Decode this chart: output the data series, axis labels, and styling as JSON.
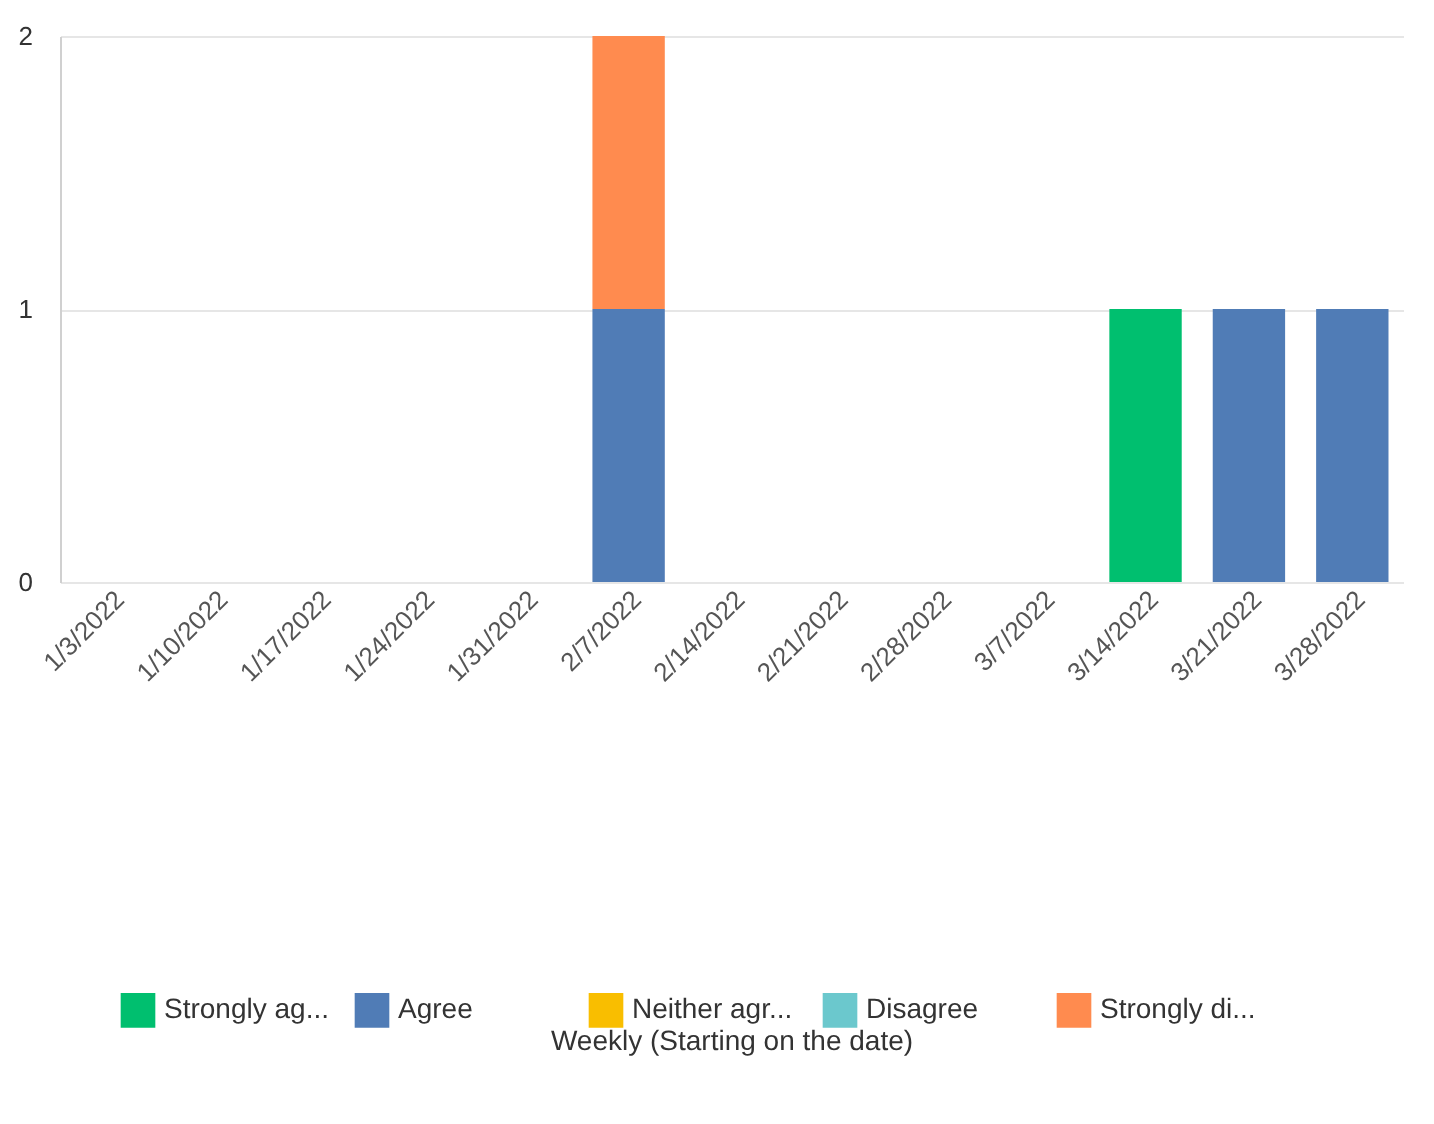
{
  "chart_data": {
    "type": "bar",
    "annotations": [
      "Weekly (Starting on the date)"
    ],
    "categories": [
      "1/3/2022",
      "1/10/2022",
      "1/17/2022",
      "1/24/2022",
      "1/31/2022",
      "2/7/2022",
      "2/14/2022",
      "2/21/2022",
      "2/28/2022",
      "3/7/2022",
      "3/14/2022",
      "3/21/2022",
      "3/28/2022"
    ],
    "series": [
      {
        "name": "Strongly ag...",
        "color": "#00bf6f",
        "values": [
          0,
          0,
          0,
          0,
          0,
          0,
          0,
          0,
          0,
          0,
          1,
          0,
          0
        ]
      },
      {
        "name": "Agree",
        "color": "#507cb6",
        "values": [
          0,
          0,
          0,
          0,
          0,
          1,
          0,
          0,
          0,
          0,
          0,
          1,
          1
        ]
      },
      {
        "name": "Neither agr...",
        "color": "#f9be00",
        "values": [
          0,
          0,
          0,
          0,
          0,
          0,
          0,
          0,
          0,
          0,
          0,
          0,
          0
        ]
      },
      {
        "name": "Disagree",
        "color": "#6bc8cd",
        "values": [
          0,
          0,
          0,
          0,
          0,
          0,
          0,
          0,
          0,
          0,
          0,
          0,
          0
        ]
      },
      {
        "name": "Strongly di...",
        "color": "#ff8b4f",
        "values": [
          0,
          0,
          0,
          0,
          0,
          1,
          0,
          0,
          0,
          0,
          0,
          0,
          0
        ]
      }
    ],
    "stacked": true,
    "ylim": [
      0,
      2
    ],
    "yticks": [
      0,
      1,
      2
    ],
    "grid": "y",
    "legend": "bottom"
  }
}
